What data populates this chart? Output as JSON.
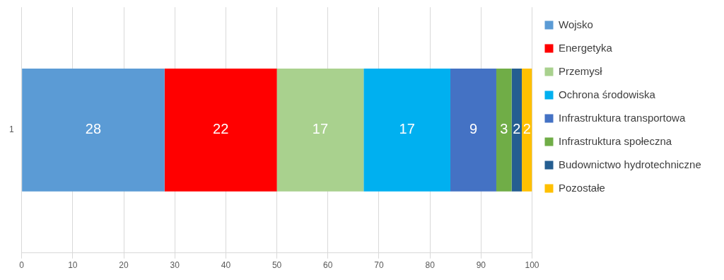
{
  "chart_data": {
    "type": "bar",
    "orientation": "horizontal",
    "stacked": true,
    "categories": [
      "1"
    ],
    "series": [
      {
        "name": "Wojsko",
        "color": "#5b9bd5",
        "values": [
          28
        ]
      },
      {
        "name": "Energetyka",
        "color": "#ff0000",
        "values": [
          22
        ]
      },
      {
        "name": "Przemysł",
        "color": "#a9d18e",
        "values": [
          17
        ]
      },
      {
        "name": "Ochrona środowiska",
        "color": "#00b0f0",
        "values": [
          17
        ]
      },
      {
        "name": "Infrastruktura transportowa",
        "color": "#4472c4",
        "values": [
          9
        ]
      },
      {
        "name": "Infrastruktura społeczna",
        "color": "#70ad47",
        "values": [
          3
        ]
      },
      {
        "name": "Budownictwo hydrotechniczne",
        "color": "#255e91",
        "values": [
          2
        ]
      },
      {
        "name": "Pozostałe",
        "color": "#ffc000",
        "values": [
          2
        ]
      }
    ],
    "xlim": [
      0,
      100
    ],
    "xticks": [
      0,
      10,
      20,
      30,
      40,
      50,
      60,
      70,
      80,
      90,
      100
    ],
    "grid": "x",
    "legend": "right",
    "data_labels": true
  }
}
